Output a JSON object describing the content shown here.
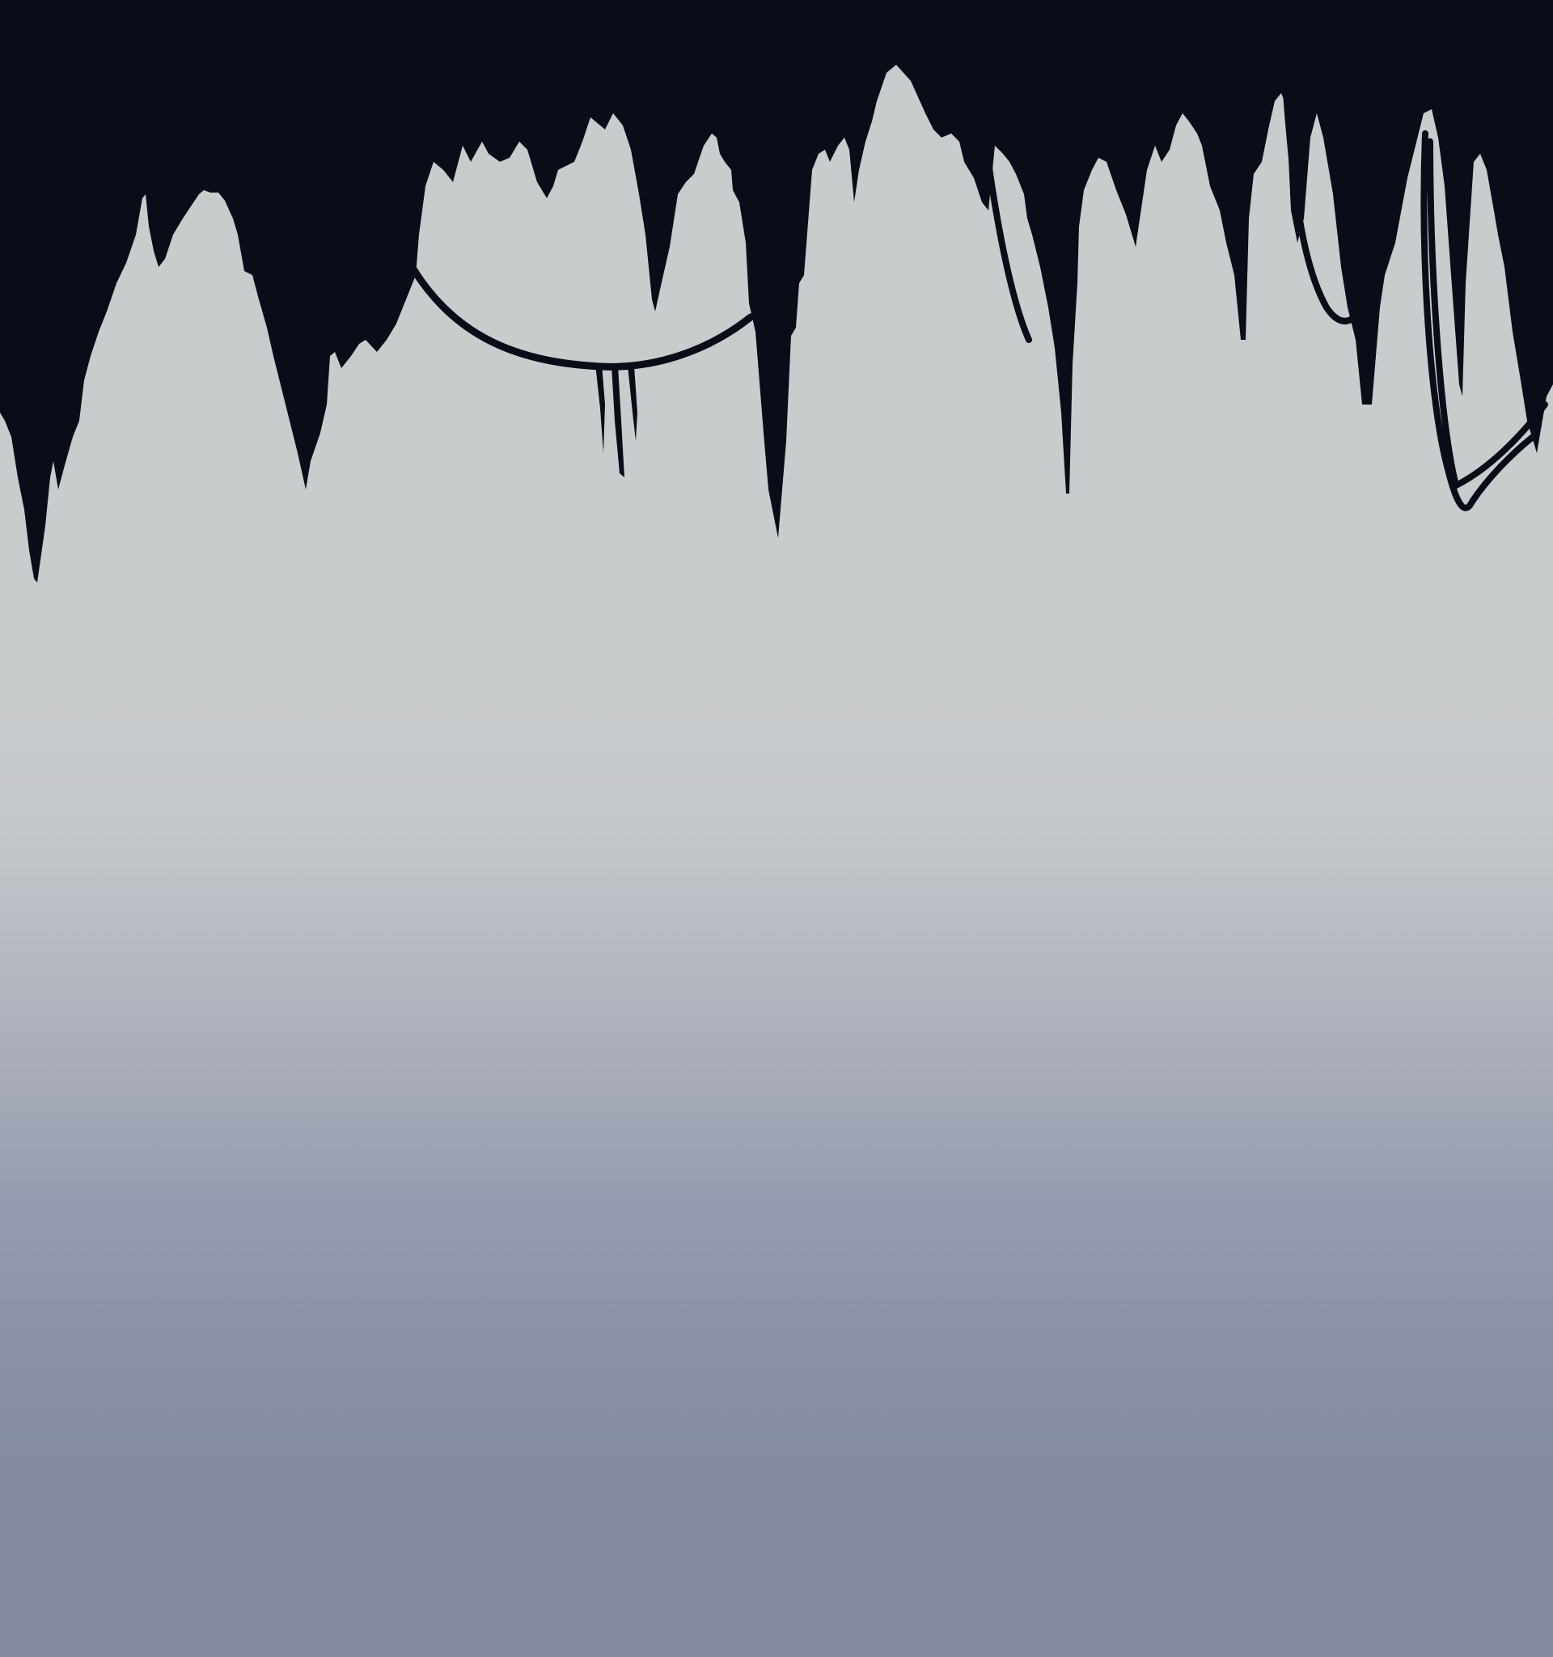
{
  "scene": {
    "name": "cave-ceiling-background",
    "palette": {
      "rock": "#090d18",
      "fog_top": "#c9cccd",
      "fog_mid": "#bdc0c6",
      "fog_bottom": "#848b9f"
    },
    "elements": [
      "stalactites",
      "hanging-vine",
      "hanging-roots"
    ]
  }
}
